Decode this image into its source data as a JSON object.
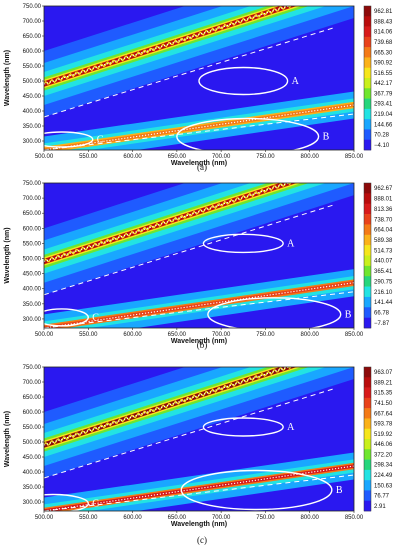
{
  "chart_data": [
    {
      "type": "heatmap",
      "caption": "(a)",
      "xlabel": "Wavelength (nm)",
      "ylabel": "Wavelength (nm)",
      "xlim": [
        500,
        850
      ],
      "ylim": [
        270,
        750
      ],
      "x_ticks": [
        "500.00",
        "550.00",
        "600.00",
        "650.00",
        "700.00",
        "750.00",
        "800.00",
        "850.00"
      ],
      "y_ticks": [
        "300.00",
        "350.00",
        "400.00",
        "450.00",
        "500.00",
        "550.00",
        "600.00",
        "650.00",
        "700.00",
        "750.00"
      ],
      "colorbar": [
        "962.81",
        "888.43",
        "814.06",
        "739.68",
        "665.30",
        "590.92",
        "516.55",
        "442.17",
        "367.79",
        "293.41",
        "219.04",
        "144.66",
        "70.28",
        "−4.10"
      ],
      "annotations": [
        "A",
        "B",
        "C"
      ],
      "regions": [
        {
          "label": "A",
          "center": [
            725,
            500
          ],
          "half_width": [
            50,
            45
          ]
        },
        {
          "label": "B",
          "center": [
            730,
            315
          ],
          "half_width": [
            80,
            60
          ]
        },
        {
          "label": "C",
          "center": [
            520,
            305
          ],
          "half_width": [
            35,
            25
          ]
        }
      ],
      "scatter_band": {
        "start": [
          500,
          490
        ],
        "end": [
          850,
          820
        ],
        "peak": 962.81
      },
      "secondary_band": {
        "start": [
          500,
          270
        ],
        "end": [
          850,
          420
        ],
        "peak": 720
      }
    },
    {
      "type": "heatmap",
      "caption": "(b)",
      "xlabel": "Wavelength (nm)",
      "ylabel": "Wavelength (nm)",
      "xlim": [
        500,
        850
      ],
      "ylim": [
        270,
        750
      ],
      "x_ticks": [
        "500.00",
        "550.00",
        "600.00",
        "650.00",
        "700.00",
        "750.00",
        "800.00",
        "850.00"
      ],
      "y_ticks": [
        "300.00",
        "350.00",
        "400.00",
        "450.00",
        "500.00",
        "550.00",
        "600.00",
        "650.00",
        "700.00",
        "750.00"
      ],
      "colorbar": [
        "962.67",
        "888.01",
        "813.36",
        "738.70",
        "664.04",
        "589.38",
        "514.73",
        "440.07",
        "365.41",
        "290.75",
        "216.10",
        "141.44",
        "66.78",
        "−7.87"
      ],
      "annotations": [
        "A",
        "B",
        "C"
      ],
      "regions": [
        {
          "label": "A",
          "center": [
            725,
            550
          ],
          "half_width": [
            45,
            30
          ]
        },
        {
          "label": "B",
          "center": [
            760,
            315
          ],
          "half_width": [
            75,
            55
          ]
        },
        {
          "label": "C",
          "center": [
            520,
            305
          ],
          "half_width": [
            30,
            28
          ]
        }
      ],
      "scatter_band": {
        "start": [
          500,
          490
        ],
        "end": [
          850,
          820
        ],
        "peak": 962.67
      },
      "secondary_band": {
        "start": [
          500,
          270
        ],
        "end": [
          850,
          420
        ],
        "peak": 800
      }
    },
    {
      "type": "heatmap",
      "caption": "(c)",
      "xlabel": "Wavelength (nm)",
      "ylabel": "Wavelength (nm)",
      "xlim": [
        500,
        850
      ],
      "ylim": [
        270,
        750
      ],
      "x_ticks": [
        "500.00",
        "550.00",
        "600.00",
        "650.00",
        "700.00",
        "750.00",
        "800.00",
        "850.00"
      ],
      "y_ticks": [
        "300.00",
        "350.00",
        "400.00",
        "450.00",
        "500.00",
        "550.00",
        "600.00",
        "650.00",
        "700.00",
        "750.00"
      ],
      "colorbar": [
        "963.07",
        "889.21",
        "815.35",
        "741.50",
        "667.64",
        "593.78",
        "519.92",
        "446.06",
        "372.20",
        "298.34",
        "224.49",
        "150.63",
        "76.77",
        "2.91"
      ],
      "annotations": [
        "A",
        "B",
        "C"
      ],
      "regions": [
        {
          "label": "A",
          "center": [
            725,
            550
          ],
          "half_width": [
            45,
            30
          ]
        },
        {
          "label": "B",
          "center": [
            740,
            340
          ],
          "half_width": [
            85,
            65
          ]
        },
        {
          "label": "C",
          "center": [
            510,
            295
          ],
          "half_width": [
            40,
            30
          ]
        }
      ],
      "scatter_band": {
        "start": [
          500,
          490
        ],
        "end": [
          850,
          820
        ],
        "peak": 963.07
      },
      "secondary_band": {
        "start": [
          500,
          270
        ],
        "end": [
          850,
          420
        ],
        "peak": 860
      }
    }
  ]
}
